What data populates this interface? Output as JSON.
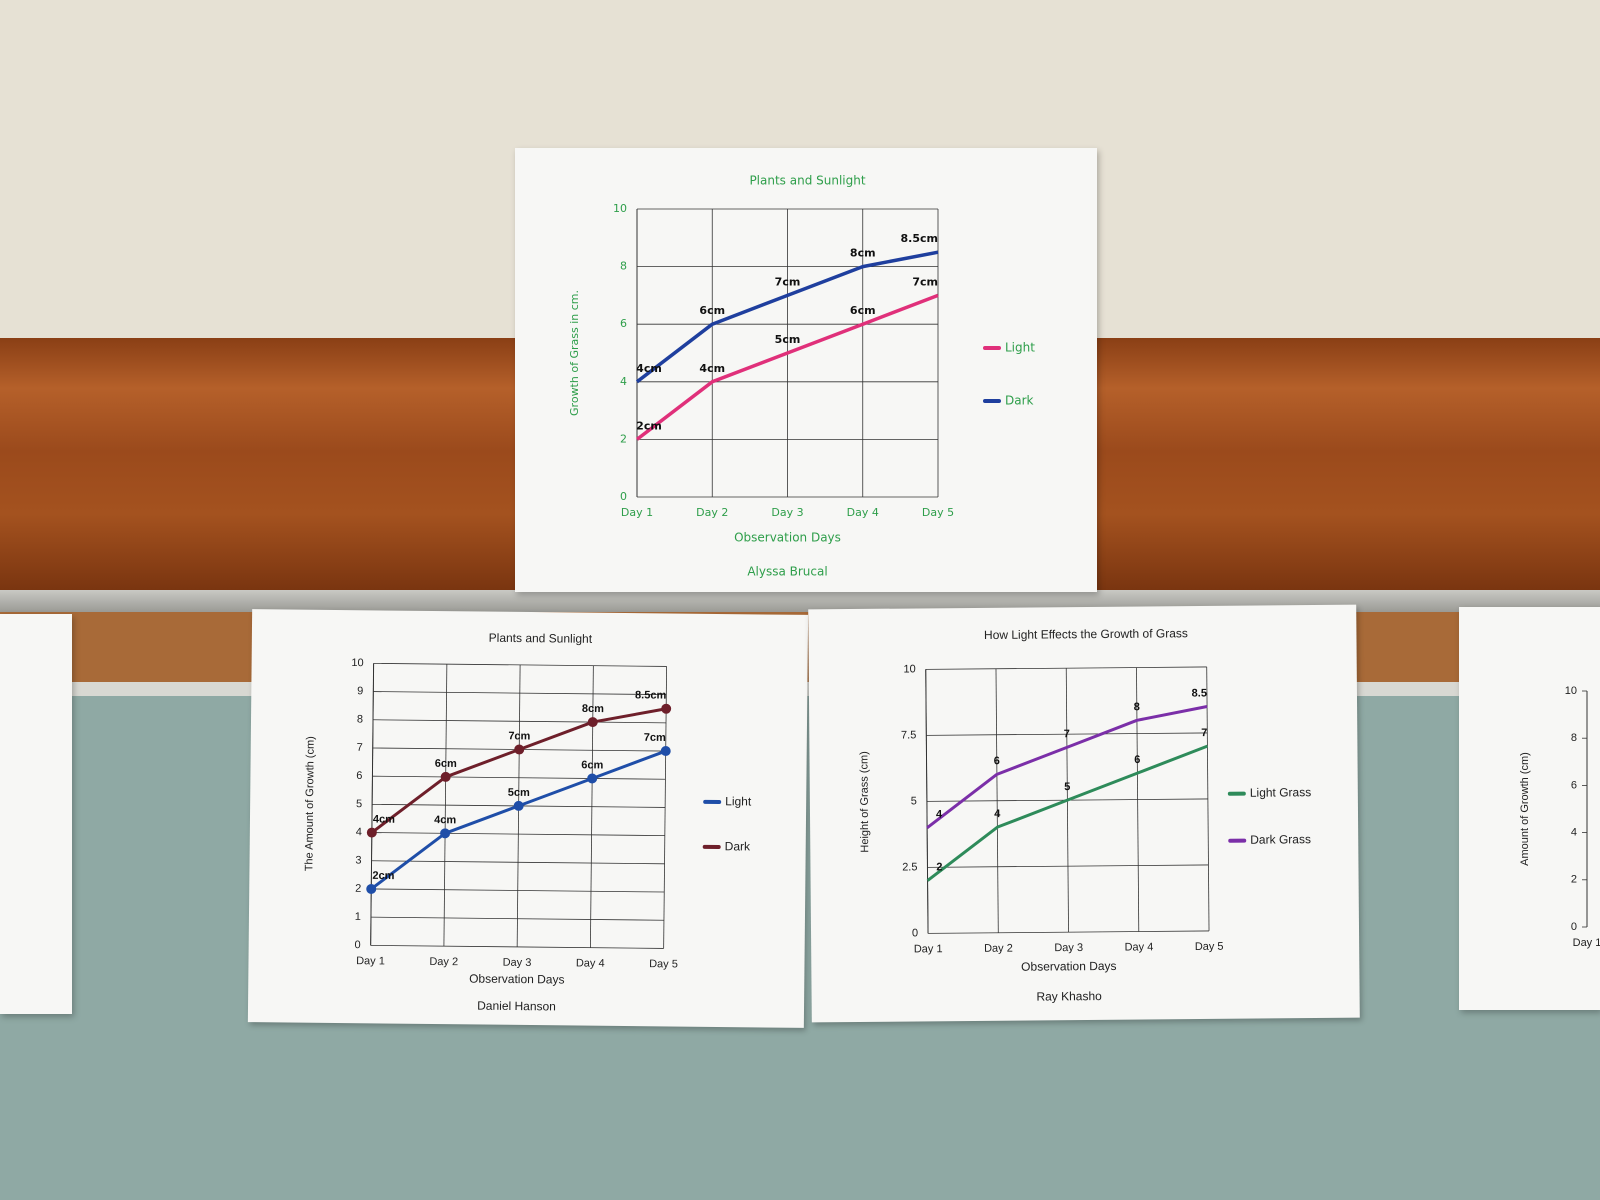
{
  "chart_data": [
    {
      "type": "line",
      "title": "Plants and Sunlight",
      "xlabel": "Observation Days",
      "ylabel": "Growth of Grass in cm.",
      "author": "Alyssa Brucal",
      "categories": [
        "Day 1",
        "Day 2",
        "Day 3",
        "Day 4",
        "Day 5"
      ],
      "ylim": [
        0,
        10
      ],
      "yticks": [
        0,
        2,
        4,
        6,
        8,
        10
      ],
      "grid": true,
      "legend": "right",
      "markers": false,
      "text_color": "#2e9e4a",
      "series": [
        {
          "name": "Light",
          "color": "#e0307a",
          "values": [
            2,
            4,
            5,
            6,
            7
          ],
          "value_labels": [
            "2cm",
            "4cm",
            "5cm",
            "6cm",
            "7cm"
          ]
        },
        {
          "name": "Dark",
          "color": "#1f3f9e",
          "values": [
            4,
            6,
            7,
            8,
            8.5
          ],
          "value_labels": [
            "4cm",
            "6cm",
            "7cm",
            "8cm",
            "8.5cm"
          ]
        }
      ]
    },
    {
      "type": "line",
      "title": "Plants and Sunlight",
      "xlabel": "Observation Days",
      "ylabel": "The Amount of Growth (cm)",
      "author": "Daniel Hanson",
      "categories": [
        "Day 1",
        "Day 2",
        "Day 3",
        "Day 4",
        "Day 5"
      ],
      "ylim": [
        0,
        10
      ],
      "yticks": [
        0,
        1,
        2,
        3,
        4,
        5,
        6,
        7,
        8,
        9,
        10
      ],
      "grid": true,
      "legend": "right",
      "markers": true,
      "text_color": "#222222",
      "series": [
        {
          "name": "Light",
          "color": "#1f4ea8",
          "values": [
            2,
            4,
            5,
            6,
            7
          ],
          "value_labels": [
            "2cm",
            "4cm",
            "5cm",
            "6cm",
            "7cm"
          ]
        },
        {
          "name": "Dark",
          "color": "#6e1f2a",
          "values": [
            4,
            6,
            7,
            8,
            8.5
          ],
          "value_labels": [
            "4cm",
            "6cm",
            "7cm",
            "8cm",
            "8.5cm"
          ]
        }
      ]
    },
    {
      "type": "line",
      "title": "How Light Effects the Growth of Grass",
      "xlabel": "Observation Days",
      "ylabel": "Height of Grass (cm)",
      "author": "Ray Khasho",
      "categories": [
        "Day 1",
        "Day 2",
        "Day 3",
        "Day 4",
        "Day 5"
      ],
      "ylim": [
        0,
        10
      ],
      "yticks": [
        0,
        2.5,
        5,
        7.5,
        10
      ],
      "grid": true,
      "legend": "right",
      "markers": false,
      "text_color": "#222222",
      "series": [
        {
          "name": "Light Grass",
          "color": "#2e8b5a",
          "values": [
            2,
            4,
            5,
            6,
            7
          ]
        },
        {
          "name": "Dark Grass",
          "color": "#7b2fa8",
          "values": [
            4,
            6,
            7,
            8,
            8.5
          ]
        }
      ]
    },
    {
      "type": "line",
      "ylabel": "Amount of Growth (cm)",
      "categories": [
        "Day 1"
      ],
      "ylim": [
        0,
        10
      ],
      "yticks": [
        0,
        2,
        4,
        6,
        8,
        10
      ],
      "grid": false,
      "markers": false,
      "text_color": "#222222"
    }
  ]
}
